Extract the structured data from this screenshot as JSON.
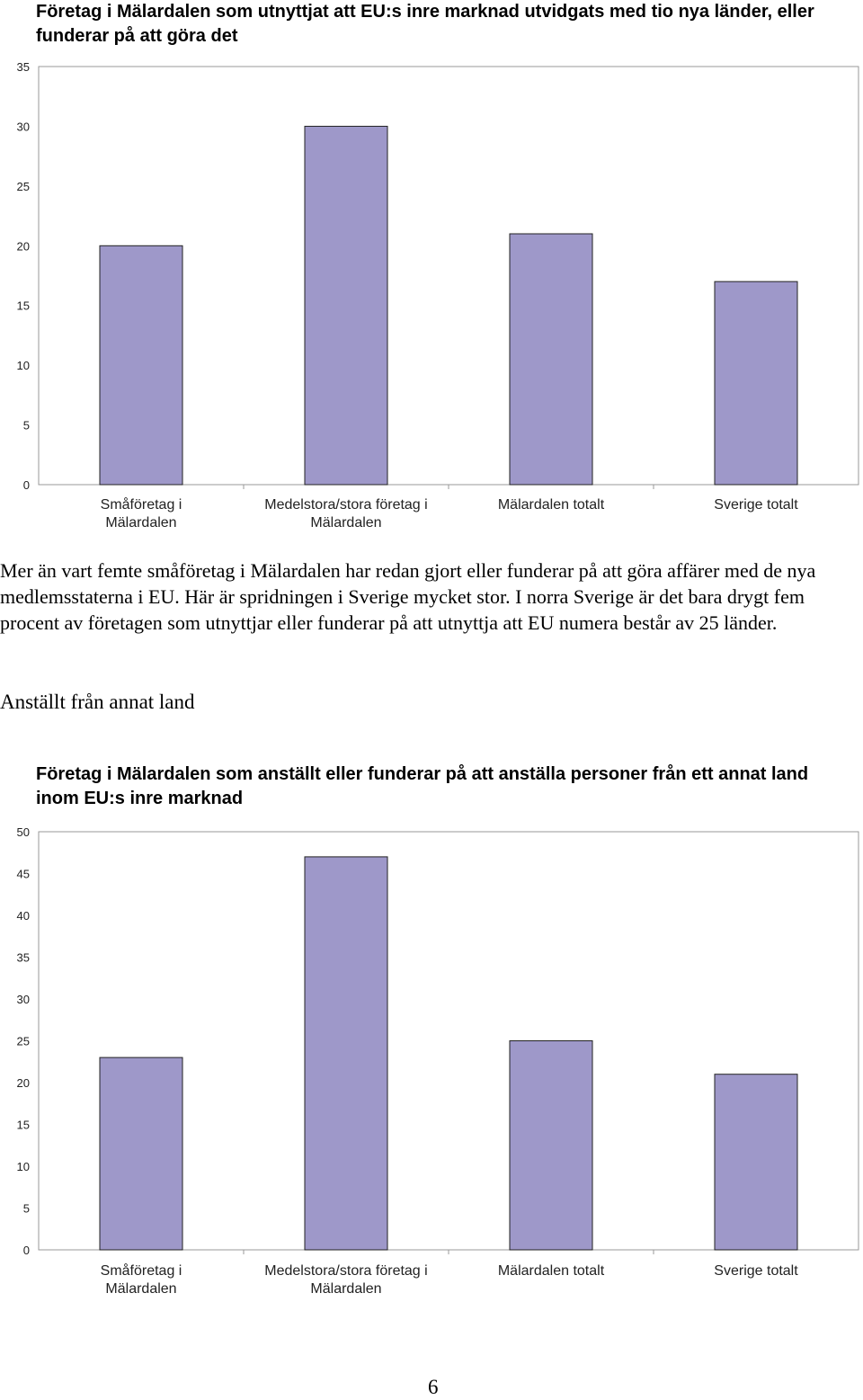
{
  "colors": {
    "bar_fill": "#9e98c9",
    "bar_stroke": "#222222",
    "frame": "#999999"
  },
  "chart_data": [
    {
      "type": "bar",
      "title": "Företag i Mälardalen som utnyttjat att EU:s inre marknad utvidgats med tio nya länder, eller funderar på att göra det",
      "categories": [
        [
          "Småföretag i",
          "Mälardalen"
        ],
        [
          "Medelstora/stora företag i",
          "Mälardalen"
        ],
        [
          "Mälardalen totalt"
        ],
        [
          "Sverige totalt"
        ]
      ],
      "values": [
        20,
        30,
        21,
        17
      ],
      "ylim": [
        0,
        35
      ],
      "yticks": [
        "0",
        "5",
        "10",
        "15",
        "20",
        "25",
        "30",
        "35"
      ],
      "xlabel": "",
      "ylabel": ""
    },
    {
      "type": "bar",
      "title": "Företag i Mälardalen som anställt eller funderar på att anställa personer från ett annat land inom EU:s inre marknad",
      "categories": [
        [
          "Småföretag i",
          "Mälardalen"
        ],
        [
          "Medelstora/stora företag i",
          "Mälardalen"
        ],
        [
          "Mälardalen totalt"
        ],
        [
          "Sverige totalt"
        ]
      ],
      "values": [
        23,
        47,
        25,
        21
      ],
      "ylim": [
        0,
        50
      ],
      "yticks": [
        "0",
        "5",
        "10",
        "15",
        "20",
        "25",
        "30",
        "35",
        "40",
        "45",
        "50"
      ],
      "xlabel": "",
      "ylabel": ""
    }
  ],
  "body_text": "Mer än vart femte småföretag i Mälardalen har redan gjort eller funderar på att göra affärer med de nya medlemsstaterna i EU. Här är spridningen i Sverige mycket stor. I norra Sverige är det bara drygt fem procent av företagen som utnyttjar eller funderar på att utnyttja att EU numera består av 25 länder.",
  "section_heading": "Anställt från annat land",
  "page_number": "6"
}
